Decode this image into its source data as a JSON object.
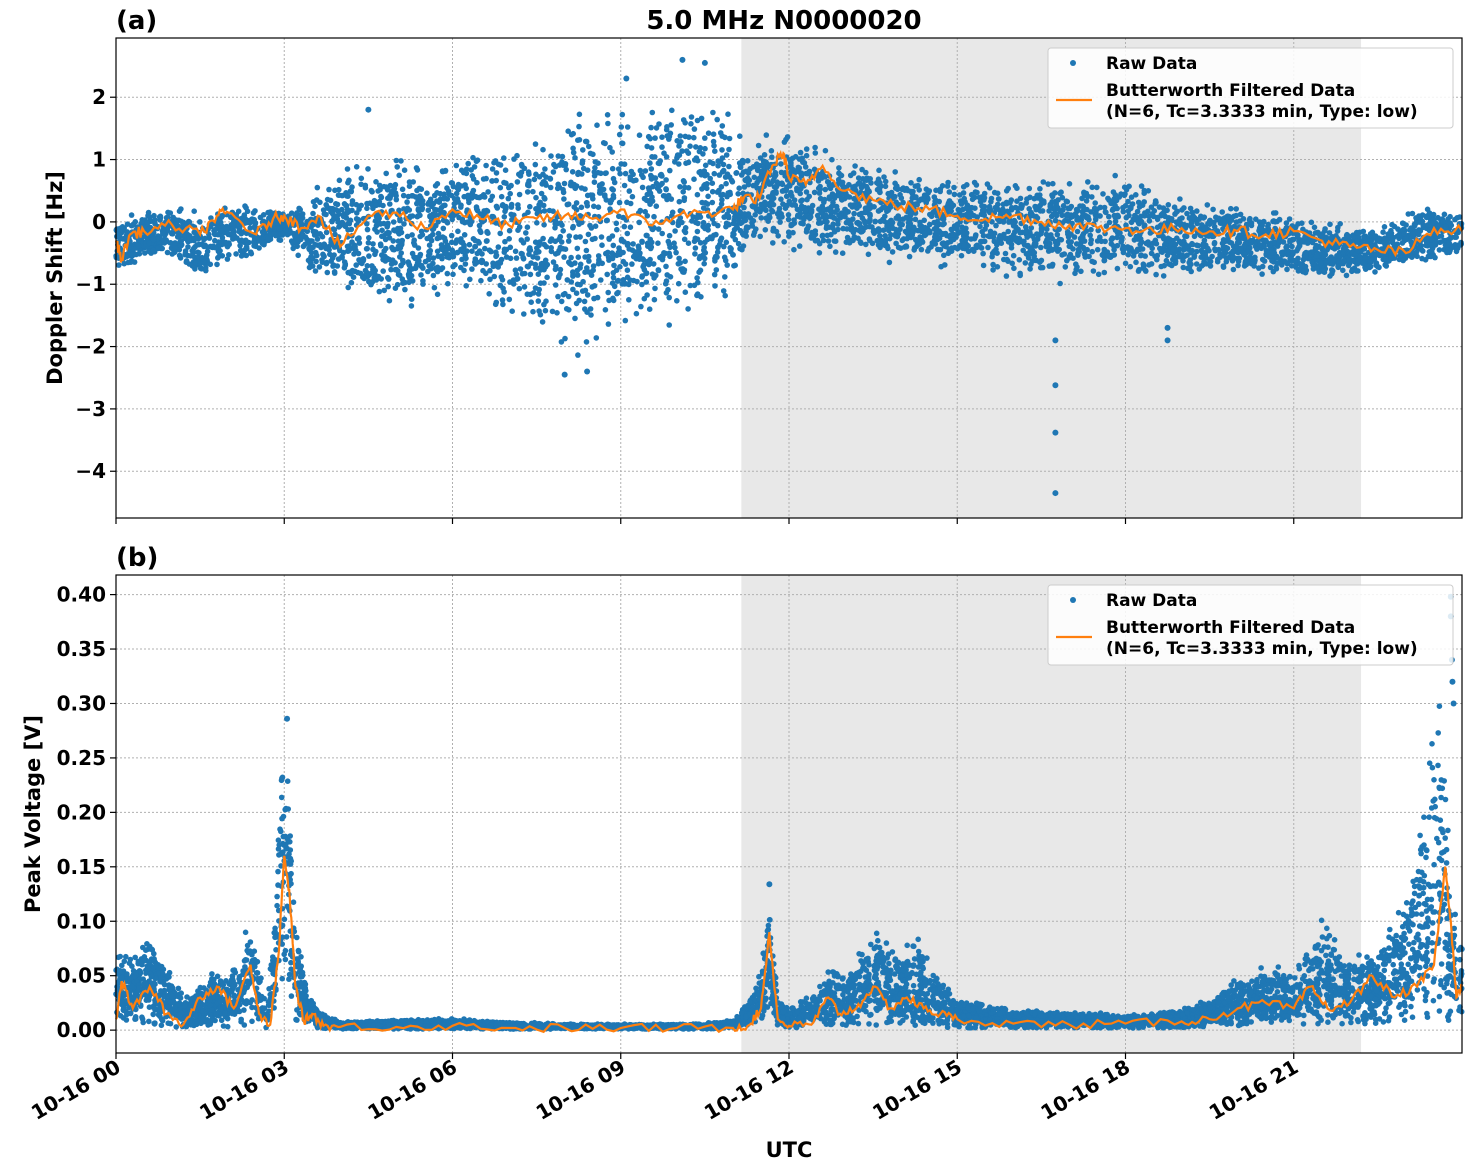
{
  "figure": {
    "title": "5.0 MHz N0000020",
    "xlabel": "UTC",
    "x_tick_labels": [
      "10-16 00",
      "10-16 03",
      "10-16 06",
      "10-16 09",
      "10-16 12",
      "10-16 15",
      "10-16 18",
      "10-16 21"
    ],
    "colors": {
      "raw": "#1f77b4",
      "filtered": "#ff7f0e",
      "shade": "#e8e8e8",
      "grid": "#b0b0b0"
    }
  },
  "legend": {
    "raw": "Raw Data",
    "filtered_line1": "Butterworth Filtered Data",
    "filtered_line2": "(N=6, Tc=3.3333 min, Type: low)"
  },
  "chart_data": [
    {
      "type": "scatter",
      "panel_label": "(a)",
      "ylabel": "Doppler Shift [Hz]",
      "xlim": [
        0,
        24
      ],
      "x_unit": "hours UTC on 10-16",
      "ylim": [
        -4.75,
        2.95
      ],
      "yticks": [
        2,
        1,
        0,
        -1,
        -2,
        -3,
        -4
      ],
      "ytick_labels": [
        "2",
        "1",
        "0",
        "−1",
        "−2",
        "−3",
        "−4"
      ],
      "grid": true,
      "legend_position": "top-right",
      "shaded_region": [
        11.15,
        22.2
      ],
      "series": [
        {
          "name": "Raw Data",
          "style": "points",
          "envelope": {
            "x": [
              0,
              0.5,
              1,
              1.5,
              2,
              2.5,
              3,
              3.5,
              4,
              4.5,
              5,
              5.5,
              6,
              6.5,
              7,
              7.5,
              8,
              8.5,
              9,
              9.5,
              10,
              10.5,
              11,
              11.2,
              11.5,
              12,
              12.5,
              13,
              13.5,
              14,
              14.5,
              15,
              15.5,
              16,
              16.5,
              17,
              17.5,
              18,
              18.5,
              19,
              19.5,
              20,
              20.5,
              21,
              21.5,
              22,
              22.5,
              23,
              23.5,
              24
            ],
            "upper": [
              0.1,
              0.2,
              0.3,
              0.2,
              0.35,
              0.3,
              0.2,
              0.5,
              0.9,
              1.2,
              1.3,
              1.1,
              1.1,
              1.3,
              1.5,
              1.7,
              1.9,
              2.0,
              2.1,
              2.2,
              2.3,
              2.2,
              2.0,
              1.2,
              1.4,
              1.5,
              1.3,
              1.1,
              1.0,
              0.9,
              0.8,
              0.75,
              0.8,
              0.9,
              0.9,
              0.8,
              0.7,
              0.9,
              0.8,
              0.5,
              0.4,
              0.3,
              0.25,
              0.2,
              0.05,
              0.0,
              0.0,
              0.2,
              0.3,
              0.2
            ],
            "lower": [
              -0.9,
              -0.6,
              -0.7,
              -1.1,
              -0.7,
              -0.6,
              -0.3,
              -1.0,
              -1.2,
              -1.6,
              -1.7,
              -1.5,
              -1.2,
              -1.5,
              -1.8,
              -2.0,
              -2.3,
              -2.2,
              -2.0,
              -1.9,
              -1.8,
              -1.6,
              -1.4,
              -0.6,
              -0.4,
              -0.6,
              -0.6,
              -0.6,
              -0.7,
              -0.7,
              -0.8,
              -0.8,
              -0.9,
              -1.0,
              -1.1,
              -1.0,
              -1.0,
              -1.1,
              -1.0,
              -1.0,
              -0.9,
              -0.9,
              -0.9,
              -0.9,
              -1.0,
              -0.95,
              -0.9,
              -0.8,
              -0.7,
              -0.6
            ]
          },
          "outliers": [
            {
              "x": 16.75,
              "y": -1.9
            },
            {
              "x": 16.75,
              "y": -2.62
            },
            {
              "x": 16.75,
              "y": -3.38
            },
            {
              "x": 16.75,
              "y": -4.35
            },
            {
              "x": 18.75,
              "y": -1.7
            },
            {
              "x": 18.75,
              "y": -1.9
            },
            {
              "x": 8.0,
              "y": -2.45
            },
            {
              "x": 8.4,
              "y": -2.4
            },
            {
              "x": 10.5,
              "y": 2.55
            },
            {
              "x": 9.1,
              "y": 2.3
            },
            {
              "x": 4.5,
              "y": 1.8
            },
            {
              "x": 10.1,
              "y": 2.6
            }
          ]
        },
        {
          "name": "Butterworth Filtered Data (N=6, Tc=3.3333 min, Type: low)",
          "style": "line",
          "x": [
            0,
            0.1,
            0.25,
            0.5,
            1,
            1.5,
            1.8,
            2,
            2.5,
            2.8,
            3,
            3.3,
            3.6,
            4,
            4.5,
            5,
            5.5,
            6,
            6.5,
            7,
            7.5,
            8,
            8.5,
            9,
            9.5,
            10,
            10.5,
            11,
            11.2,
            11.4,
            11.7,
            11.9,
            12,
            12.3,
            12.6,
            13,
            13.5,
            14,
            14.5,
            15,
            15.5,
            16,
            16.5,
            17,
            17.5,
            18,
            18.5,
            19,
            19.5,
            20,
            20.5,
            21,
            21.5,
            22,
            22.5,
            23,
            23.5,
            24
          ],
          "y": [
            -0.3,
            -0.6,
            -0.2,
            -0.15,
            -0.05,
            -0.2,
            0.1,
            0.15,
            -0.2,
            0.05,
            0.1,
            -0.1,
            0.1,
            -0.4,
            0.1,
            0.15,
            -0.1,
            0.2,
            0.05,
            -0.05,
            0.05,
            0.1,
            0.05,
            0.2,
            -0.05,
            0.1,
            0.15,
            0.2,
            0.4,
            0.3,
            0.9,
            1.1,
            0.7,
            0.6,
            0.9,
            0.5,
            0.35,
            0.25,
            0.2,
            0.1,
            0.05,
            0.1,
            0.0,
            -0.05,
            -0.1,
            -0.1,
            -0.15,
            -0.1,
            -0.15,
            -0.15,
            -0.2,
            -0.15,
            -0.3,
            -0.4,
            -0.45,
            -0.5,
            -0.1,
            -0.15
          ]
        }
      ]
    },
    {
      "type": "scatter",
      "panel_label": "(b)",
      "ylabel": "Peak Voltage [V]",
      "xlim": [
        0,
        24
      ],
      "x_unit": "hours UTC on 10-16",
      "ylim": [
        -0.021,
        0.418
      ],
      "yticks": [
        0.4,
        0.35,
        0.3,
        0.25,
        0.2,
        0.15,
        0.1,
        0.05,
        0.0
      ],
      "ytick_labels": [
        "0.40",
        "0.35",
        "0.30",
        "0.25",
        "0.20",
        "0.15",
        "0.10",
        "0.05",
        "0.00"
      ],
      "grid": true,
      "legend_position": "top-right",
      "shaded_region": [
        11.15,
        22.2
      ],
      "series": [
        {
          "name": "Raw Data",
          "style": "points",
          "envelope": {
            "x": [
              0,
              0.3,
              0.6,
              1,
              1.3,
              1.7,
              2,
              2.4,
              2.7,
              2.85,
              2.9,
              3.0,
              3.1,
              3.2,
              3.4,
              3.6,
              4,
              5,
              6,
              7,
              8,
              9,
              10,
              10.5,
              11,
              11.3,
              11.5,
              11.65,
              11.8,
              12,
              12.5,
              12.8,
              13,
              13.4,
              13.6,
              14,
              14.3,
              14.6,
              15,
              16,
              17,
              18,
              19,
              19.5,
              20,
              20.5,
              21,
              21.5,
              22,
              22.5,
              23,
              23.4,
              23.6,
              23.8,
              24
            ],
            "upper": [
              0.085,
              0.07,
              0.095,
              0.05,
              0.03,
              0.06,
              0.05,
              0.115,
              0.025,
              0.14,
              0.22,
              0.285,
              0.23,
              0.12,
              0.04,
              0.02,
              0.008,
              0.01,
              0.012,
              0.008,
              0.006,
              0.006,
              0.006,
              0.007,
              0.01,
              0.03,
              0.06,
              0.135,
              0.03,
              0.02,
              0.04,
              0.07,
              0.05,
              0.1,
              0.09,
              0.08,
              0.09,
              0.06,
              0.03,
              0.02,
              0.018,
              0.015,
              0.02,
              0.03,
              0.05,
              0.06,
              0.06,
              0.11,
              0.07,
              0.08,
              0.13,
              0.25,
              0.4,
              0.13,
              0.1
            ],
            "lower": [
              0.005,
              0.01,
              0.005,
              0.003,
              0.003,
              0.005,
              0.003,
              0.005,
              0.002,
              0.02,
              0.04,
              0.05,
              0.03,
              0.01,
              0.003,
              0.002,
              0.001,
              0.001,
              0.001,
              0.001,
              0.001,
              0.001,
              0.001,
              0.001,
              0.002,
              0.004,
              0.01,
              0.02,
              0.004,
              0.002,
              0.003,
              0.005,
              0.004,
              0.005,
              0.004,
              0.004,
              0.004,
              0.003,
              0.002,
              0.002,
              0.002,
              0.002,
              0.002,
              0.003,
              0.004,
              0.005,
              0.005,
              0.006,
              0.005,
              0.006,
              0.008,
              0.01,
              0.01,
              0.008,
              0.01
            ]
          },
          "outliers": [
            {
              "x": 23.8,
              "y": 0.398
            },
            {
              "x": 23.8,
              "y": 0.38
            },
            {
              "x": 23.82,
              "y": 0.34
            },
            {
              "x": 23.83,
              "y": 0.32
            },
            {
              "x": 23.85,
              "y": 0.3
            },
            {
              "x": 3.05,
              "y": 0.286
            },
            {
              "x": 11.65,
              "y": 0.134
            }
          ]
        },
        {
          "name": "Butterworth Filtered Data (N=6, Tc=3.3333 min, Type: low)",
          "style": "line",
          "x": [
            0,
            0.1,
            0.3,
            0.6,
            0.9,
            1.2,
            1.5,
            1.8,
            2.1,
            2.4,
            2.55,
            2.75,
            2.9,
            3.0,
            3.1,
            3.2,
            3.35,
            3.5,
            3.7,
            4,
            5,
            6,
            7,
            8,
            9,
            10,
            11,
            11.3,
            11.5,
            11.65,
            11.8,
            12,
            12.4,
            12.7,
            12.9,
            13.2,
            13.5,
            13.8,
            14.1,
            14.4,
            14.7,
            15,
            16,
            17,
            18,
            19,
            19.5,
            20,
            20.5,
            21,
            21.3,
            21.6,
            22,
            22.4,
            22.8,
            23.2,
            23.5,
            23.7,
            23.8,
            23.9,
            24
          ],
          "y": [
            0.01,
            0.045,
            0.02,
            0.04,
            0.015,
            0.005,
            0.03,
            0.04,
            0.02,
            0.06,
            0.015,
            0.005,
            0.07,
            0.16,
            0.12,
            0.04,
            0.008,
            0.015,
            0.004,
            0.003,
            0.003,
            0.004,
            0.002,
            0.002,
            0.002,
            0.002,
            0.002,
            0.005,
            0.02,
            0.09,
            0.01,
            0.004,
            0.005,
            0.03,
            0.015,
            0.02,
            0.04,
            0.02,
            0.03,
            0.02,
            0.015,
            0.01,
            0.006,
            0.005,
            0.006,
            0.008,
            0.01,
            0.02,
            0.025,
            0.02,
            0.04,
            0.02,
            0.025,
            0.05,
            0.03,
            0.04,
            0.06,
            0.15,
            0.1,
            0.03,
            0.04
          ]
        }
      ]
    }
  ]
}
